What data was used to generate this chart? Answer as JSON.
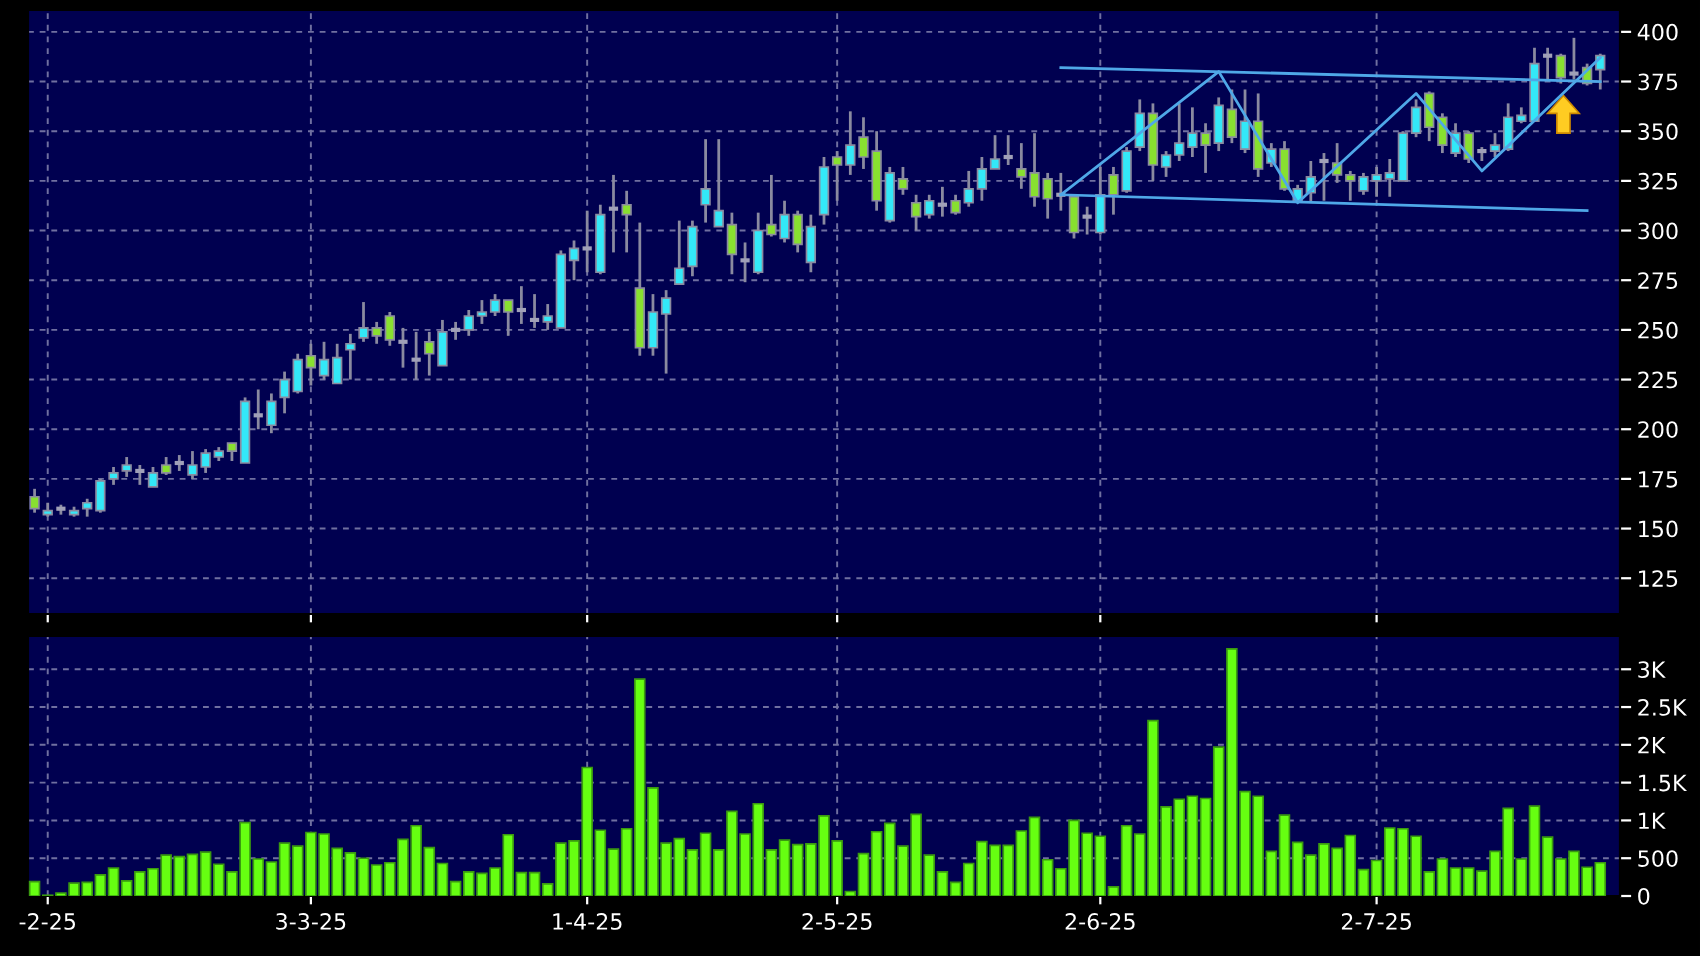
{
  "chart_data": [
    {
      "type": "candlestick",
      "categories": [
        null,
        null,
        null,
        null,
        null,
        null,
        null,
        null,
        null,
        null,
        null,
        null,
        null,
        null,
        null,
        null,
        null,
        null,
        null,
        null,
        null,
        null,
        null,
        null,
        null,
        null,
        null,
        null,
        null,
        null,
        null,
        null,
        null,
        null,
        null,
        null,
        null,
        null,
        null,
        null,
        null,
        null,
        null,
        null,
        null,
        null,
        null,
        null,
        null,
        null,
        null,
        null,
        null,
        null,
        null,
        null,
        null,
        null,
        null,
        null,
        null,
        null,
        null,
        null,
        null,
        null,
        null,
        null,
        null,
        null,
        null,
        null,
        null,
        null,
        null,
        null,
        null,
        null,
        null,
        null,
        null,
        null,
        null,
        null,
        null,
        null,
        null,
        null,
        null,
        null,
        null,
        null,
        null,
        null,
        null,
        null,
        null,
        null,
        null,
        null,
        null,
        null,
        null,
        null,
        null,
        null,
        null,
        null,
        null,
        null,
        null,
        null,
        null,
        null,
        null,
        null,
        null,
        null,
        null,
        null
      ],
      "ohlc": [
        [
          166,
          170,
          158,
          160
        ],
        [
          157,
          163,
          156,
          159
        ],
        [
          160,
          162,
          157,
          160
        ],
        [
          157,
          161,
          156,
          159
        ],
        [
          160,
          165,
          156,
          163
        ],
        [
          159,
          175,
          158,
          174
        ],
        [
          175,
          181,
          172,
          178
        ],
        [
          179,
          186,
          176,
          182
        ],
        [
          179,
          182,
          172,
          179
        ],
        [
          171,
          181,
          171,
          178
        ],
        [
          182,
          186,
          177,
          178
        ],
        [
          183,
          187,
          179,
          183
        ],
        [
          177,
          189,
          175,
          182
        ],
        [
          181,
          190,
          178,
          188
        ],
        [
          186,
          191,
          184,
          189
        ],
        [
          193,
          193,
          184,
          189
        ],
        [
          183,
          216,
          183,
          214
        ],
        [
          207,
          220,
          200,
          207
        ],
        [
          202,
          218,
          198,
          214
        ],
        [
          216,
          229,
          208,
          225
        ],
        [
          219,
          238,
          218,
          235
        ],
        [
          237,
          243,
          222,
          231
        ],
        [
          227,
          244,
          225,
          235
        ],
        [
          223,
          243,
          223,
          236
        ],
        [
          240,
          248,
          225,
          243
        ],
        [
          246,
          264,
          244,
          251
        ],
        [
          251,
          254,
          243,
          247
        ],
        [
          257,
          259,
          242,
          245
        ],
        [
          244,
          251,
          231,
          244
        ],
        [
          235,
          249,
          225,
          235
        ],
        [
          244,
          249,
          227,
          238
        ],
        [
          232,
          255,
          232,
          249
        ],
        [
          250,
          254,
          245,
          250
        ],
        [
          250,
          260,
          247,
          257
        ],
        [
          257,
          265,
          253,
          259
        ],
        [
          259,
          268,
          257,
          265
        ],
        [
          265,
          265,
          247,
          259
        ],
        [
          260,
          272,
          253,
          260
        ],
        [
          255,
          268,
          251,
          255
        ],
        [
          254,
          263,
          250,
          257
        ],
        [
          251,
          290,
          251,
          288
        ],
        [
          285,
          295,
          275,
          291
        ],
        [
          291,
          310,
          279,
          291
        ],
        [
          279,
          313,
          278,
          308
        ],
        [
          311,
          328,
          289,
          311
        ],
        [
          313,
          320,
          289,
          308
        ],
        [
          271,
          304,
          237,
          241
        ],
        [
          241,
          268,
          237,
          259
        ],
        [
          258,
          270,
          228,
          266
        ],
        [
          273,
          305,
          273,
          281
        ],
        [
          282,
          305,
          277,
          302
        ],
        [
          313,
          346,
          304,
          321
        ],
        [
          302,
          346,
          302,
          310
        ],
        [
          303,
          309,
          278,
          288
        ],
        [
          285,
          294,
          274,
          285
        ],
        [
          279,
          309,
          278,
          300
        ],
        [
          303,
          328,
          297,
          298
        ],
        [
          296,
          315,
          294,
          308
        ],
        [
          308,
          310,
          289,
          293
        ],
        [
          284,
          308,
          279,
          302
        ],
        [
          308,
          337,
          303,
          332
        ],
        [
          337,
          340,
          315,
          333
        ],
        [
          333,
          360,
          328,
          343
        ],
        [
          347,
          357,
          331,
          337
        ],
        [
          340,
          350,
          310,
          315
        ],
        [
          305,
          332,
          304,
          329
        ],
        [
          326,
          332,
          318,
          321
        ],
        [
          314,
          318,
          300,
          307
        ],
        [
          308,
          318,
          306,
          315
        ],
        [
          313,
          322,
          307,
          313
        ],
        [
          315,
          318,
          308,
          309
        ],
        [
          314,
          330,
          312,
          321
        ],
        [
          321,
          337,
          315,
          331
        ],
        [
          331,
          348,
          331,
          336
        ],
        [
          337,
          348,
          333,
          337
        ],
        [
          331,
          344,
          321,
          327
        ],
        [
          329,
          349,
          312,
          317
        ],
        [
          326,
          329,
          306,
          316
        ],
        [
          318,
          329,
          310,
          318
        ],
        [
          317,
          318,
          296,
          299
        ],
        [
          307,
          312,
          298,
          307
        ],
        [
          299,
          332,
          298,
          318
        ],
        [
          328,
          332,
          308,
          318
        ],
        [
          320,
          342,
          319,
          340
        ],
        [
          342,
          366,
          340,
          359
        ],
        [
          359,
          364,
          325,
          333
        ],
        [
          332,
          340,
          327,
          338
        ],
        [
          338,
          364,
          335,
          344
        ],
        [
          342,
          362,
          337,
          349
        ],
        [
          349,
          354,
          329,
          343
        ],
        [
          344,
          367,
          340,
          363
        ],
        [
          361,
          371,
          344,
          347
        ],
        [
          341,
          371,
          339,
          355
        ],
        [
          355,
          369,
          327,
          331
        ],
        [
          334,
          344,
          332,
          341
        ],
        [
          341,
          345,
          320,
          321
        ],
        [
          315,
          323,
          314,
          321
        ],
        [
          319,
          335,
          314,
          327
        ],
        [
          335,
          339,
          315,
          335
        ],
        [
          334,
          344,
          324,
          328
        ],
        [
          328,
          330,
          315,
          325
        ],
        [
          320,
          329,
          318,
          327
        ],
        [
          325,
          332,
          317,
          328
        ],
        [
          326,
          336,
          317,
          329
        ],
        [
          325,
          350,
          325,
          349
        ],
        [
          349,
          366,
          347,
          362
        ],
        [
          369,
          370,
          345,
          352
        ],
        [
          357,
          359,
          339,
          343
        ],
        [
          339,
          354,
          337,
          349
        ],
        [
          349,
          350,
          334,
          336
        ],
        [
          340,
          342,
          335,
          340
        ],
        [
          340,
          349,
          337,
          343
        ],
        [
          341,
          364,
          340,
          357
        ],
        [
          355,
          362,
          354,
          358
        ],
        [
          355,
          392,
          355,
          384
        ],
        [
          388,
          392,
          376,
          388
        ],
        [
          388,
          389,
          374,
          377
        ],
        [
          379,
          397,
          376,
          379
        ],
        [
          382,
          384,
          373,
          374
        ],
        [
          381,
          389,
          371,
          388
        ]
      ],
      "series": [
        {
          "type": "line",
          "color": "#4fa8e8",
          "values": [
            null,
            null,
            null,
            null,
            null,
            null,
            null,
            null,
            null,
            null,
            null,
            null,
            null,
            null,
            null,
            null,
            null,
            null,
            null,
            null,
            null,
            null,
            null,
            null,
            null,
            null,
            null,
            null,
            null,
            null,
            null,
            null,
            null,
            null,
            null,
            null,
            null,
            null,
            null,
            null,
            null,
            null,
            null,
            null,
            null,
            null,
            null,
            null,
            null,
            null,
            null,
            null,
            null,
            null,
            null,
            null,
            null,
            null,
            null,
            null,
            null,
            null,
            null,
            null,
            null,
            null,
            null,
            null,
            null,
            null,
            null,
            null,
            null,
            null,
            null,
            null,
            null,
            null,
            382,
            null,
            null,
            null,
            null,
            null,
            null,
            null,
            null,
            null,
            null,
            null,
            null,
            null,
            null,
            null,
            null,
            null,
            null,
            null,
            null,
            null,
            null,
            null,
            null,
            null,
            null,
            null,
            null,
            null,
            null,
            null,
            null,
            null,
            null,
            null,
            null,
            null,
            null,
            null,
            null,
            375
          ]
        },
        {
          "type": "line",
          "color": "#4fa8e8",
          "values": [
            null,
            null,
            null,
            null,
            null,
            null,
            null,
            null,
            null,
            null,
            null,
            null,
            null,
            null,
            null,
            null,
            null,
            null,
            null,
            null,
            null,
            null,
            null,
            null,
            null,
            null,
            null,
            null,
            null,
            null,
            null,
            null,
            null,
            null,
            null,
            null,
            null,
            null,
            null,
            null,
            null,
            null,
            null,
            null,
            null,
            null,
            null,
            null,
            null,
            null,
            null,
            null,
            null,
            null,
            null,
            null,
            null,
            null,
            null,
            null,
            null,
            null,
            null,
            null,
            null,
            null,
            null,
            null,
            null,
            null,
            null,
            null,
            null,
            null,
            null,
            null,
            null,
            null,
            318,
            null,
            null,
            null,
            null,
            null,
            null,
            null,
            null,
            null,
            null,
            null,
            null,
            null,
            null,
            null,
            null,
            null,
            null,
            null,
            null,
            null,
            null,
            null,
            null,
            null,
            null,
            null,
            null,
            null,
            null,
            null,
            null,
            null,
            null,
            null,
            null,
            null,
            null,
            null,
            310,
            null
          ]
        },
        {
          "type": "line",
          "color": "#4fa8e8",
          "values": [
            null,
            null,
            null,
            null,
            null,
            null,
            null,
            null,
            null,
            null,
            null,
            null,
            null,
            null,
            null,
            null,
            null,
            null,
            null,
            null,
            null,
            null,
            null,
            null,
            null,
            null,
            null,
            null,
            null,
            null,
            null,
            null,
            null,
            null,
            null,
            null,
            null,
            null,
            null,
            null,
            null,
            null,
            null,
            null,
            null,
            null,
            null,
            null,
            null,
            null,
            null,
            null,
            null,
            null,
            null,
            null,
            null,
            null,
            null,
            null,
            null,
            null,
            null,
            null,
            null,
            null,
            null,
            null,
            null,
            null,
            null,
            null,
            null,
            null,
            null,
            null,
            null,
            null,
            318,
            null,
            null,
            null,
            null,
            null,
            null,
            null,
            null,
            null,
            null,
            null,
            380,
            null,
            null,
            null,
            null,
            null,
            314,
            null,
            null,
            null,
            null,
            null,
            null,
            null,
            null,
            369,
            null,
            null,
            null,
            null,
            330,
            null,
            null,
            null,
            null,
            null,
            null,
            null,
            null,
            387
          ]
        }
      ],
      "ylim": [
        107,
        411
      ],
      "yticks": [
        125,
        150,
        175,
        200,
        225,
        250,
        275,
        300,
        325,
        350,
        375,
        400
      ],
      "grid": true,
      "tick_labels": "y"
    },
    {
      "type": "bar",
      "categories": [
        null,
        "-2-25",
        null,
        null,
        null,
        null,
        null,
        null,
        null,
        null,
        null,
        null,
        null,
        null,
        null,
        null,
        null,
        null,
        null,
        null,
        null,
        "3-3-25",
        null,
        null,
        null,
        null,
        null,
        null,
        null,
        null,
        null,
        null,
        null,
        null,
        null,
        null,
        null,
        null,
        null,
        null,
        null,
        null,
        "1-4-25",
        null,
        null,
        null,
        null,
        null,
        null,
        null,
        null,
        null,
        null,
        null,
        null,
        null,
        null,
        null,
        null,
        null,
        null,
        "2-5-25",
        null,
        null,
        null,
        null,
        null,
        null,
        null,
        null,
        null,
        null,
        null,
        null,
        null,
        null,
        null,
        null,
        null,
        null,
        null,
        "2-6-25",
        null,
        null,
        null,
        null,
        null,
        null,
        null,
        null,
        null,
        null,
        null,
        null,
        null,
        null,
        null,
        null,
        null,
        null,
        null,
        null,
        "2-7-25",
        null,
        null,
        null,
        null,
        null,
        null,
        null,
        null,
        null,
        null,
        null,
        null,
        null,
        null,
        null,
        null,
        null
      ],
      "color": "#66ff11",
      "values": [
        190,
        10,
        40,
        170,
        180,
        280,
        370,
        200,
        320,
        360,
        540,
        520,
        550,
        580,
        420,
        320,
        970,
        490,
        450,
        700,
        660,
        840,
        820,
        630,
        570,
        500,
        410,
        440,
        750,
        930,
        640,
        430,
        190,
        320,
        300,
        370,
        810,
        310,
        310,
        160,
        700,
        730,
        1700,
        870,
        620,
        890,
        2870,
        1430,
        700,
        760,
        610,
        830,
        610,
        1120,
        820,
        1220,
        610,
        740,
        680,
        690,
        1060,
        730,
        60,
        560,
        850,
        960,
        660,
        1080,
        540,
        320,
        180,
        430,
        720,
        670,
        670,
        860,
        1040,
        480,
        360,
        1000,
        830,
        790,
        120,
        930,
        820,
        2320,
        1180,
        1280,
        1320,
        1290,
        1970,
        3270,
        1380,
        1320,
        590,
        1070,
        710,
        540,
        690,
        630,
        800,
        350,
        470,
        900,
        890,
        790,
        320,
        490,
        370,
        370,
        330,
        590,
        1160,
        490,
        1190,
        780,
        490,
        590,
        380,
        440
      ],
      "ylim": [
        0,
        3440
      ],
      "yticks": [
        0,
        500,
        {
          "value": 1000,
          "label": "1K"
        },
        {
          "value": 1500,
          "label": "1.5K"
        },
        {
          "value": 2000,
          "label": "2K"
        },
        {
          "value": 2500,
          "label": "2.5K"
        },
        {
          "value": 3000,
          "label": "3K"
        }
      ],
      "grid": true
    }
  ]
}
